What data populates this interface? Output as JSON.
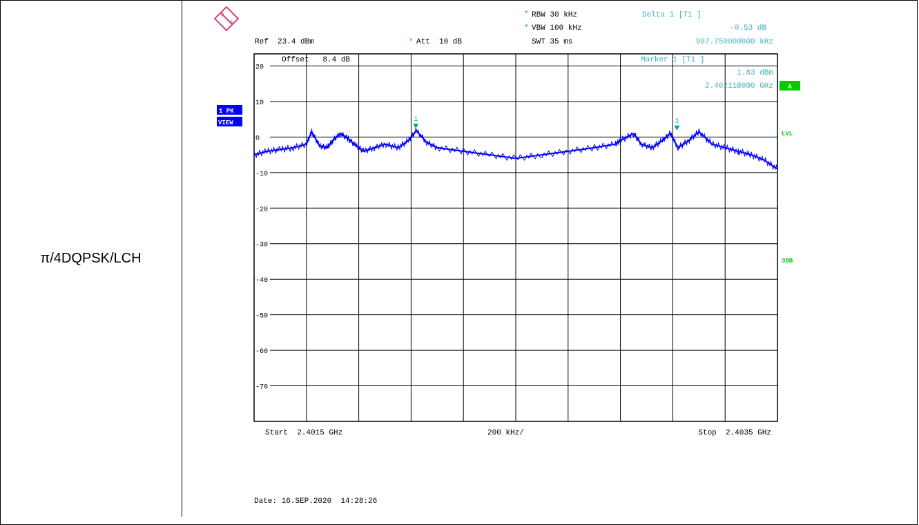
{
  "row_label": "π/4DQPSK/LCH",
  "instrument": {
    "rbw": "RBW 30 kHz",
    "vbw": "VBW 100 kHz",
    "swt": "SWT 35 ms",
    "ref": "Ref  23.4 dBm",
    "att": "Att  10 dB",
    "offset": "Offset   8.4 dB",
    "delta_title": "Delta 1 [T1 ]",
    "delta_value": "-0.53 dB",
    "delta_freq": "997.750000000 kHz",
    "marker_title": "Marker 1 [T1 ]",
    "marker_value": "1.83 dBm",
    "marker_freq": "2.402118000 GHz",
    "trace_box_1": "1 PK",
    "trace_box_2": "VIEW",
    "a_box": "A",
    "lvl": "LVL",
    "db3": "3DB",
    "start": "Start  2.4015 GHz",
    "div": "200 kHz/",
    "stop": "Stop  2.4035 GHz",
    "date": "Date: 16.SEP.2020  14:28:26",
    "marker1_label": "1",
    "marker2_label": "1"
  },
  "colors": {
    "trace": "#0000ff",
    "marker": "#00a0a0",
    "info": "#40b0c0",
    "green": "#00cc00",
    "box": "#0000ff"
  },
  "chart_data": {
    "type": "line",
    "title": "",
    "xlabel": "",
    "ylabel": "",
    "xlim": [
      2.4015,
      2.4035
    ],
    "ylim": [
      -80,
      23.4
    ],
    "x_unit": "GHz",
    "y_unit": "dBm",
    "y_ticks": [
      20,
      10,
      0,
      -10,
      -20,
      -30,
      -40,
      -50,
      -60,
      -70
    ],
    "y_tick_labels": [
      "20",
      "10",
      "0",
      "-10",
      "-20",
      "-30",
      "-40",
      "-50",
      "-60",
      "-70"
    ],
    "grid": true,
    "series": [
      {
        "x": [
          2.4015,
          2.40155,
          2.4016,
          2.40165,
          2.4017,
          2.40172,
          2.40175,
          2.40178,
          2.4018,
          2.40183,
          2.40186,
          2.40189,
          2.40192,
          2.40196,
          2.402,
          2.40205,
          2.40209,
          2.40212,
          2.40216,
          2.4022,
          2.4023,
          2.4024,
          2.4025,
          2.4026,
          2.4027,
          2.4028,
          2.40288,
          2.4029,
          2.40295,
          2.40298,
          2.40302,
          2.40306,
          2.40309,
          2.40312,
          2.40316,
          2.4032,
          2.40325,
          2.4033,
          2.40335
        ],
        "y": [
          -5,
          -4,
          -3.5,
          -3,
          -2,
          1.5,
          -2.5,
          -3,
          -1,
          1,
          -0.5,
          -2.5,
          -4,
          -3,
          -2,
          -3,
          -1,
          1.8,
          -1.5,
          -3,
          -4,
          -5,
          -6,
          -5,
          -4,
          -3,
          -2,
          -1,
          1,
          -2,
          -3,
          -1,
          1,
          -3,
          -1,
          1.5,
          -2,
          -3,
          -4
        ]
      },
      {
        "x": [
          2.40335,
          2.4034,
          2.40345,
          2.4035
        ],
        "y": [
          -4,
          -5,
          -6.5,
          -9
        ]
      }
    ],
    "markers": [
      {
        "name": "1",
        "x": 2.402118,
        "y": 1.83
      },
      {
        "name": "D1",
        "x": 2.403116,
        "y": 1.3
      }
    ]
  }
}
